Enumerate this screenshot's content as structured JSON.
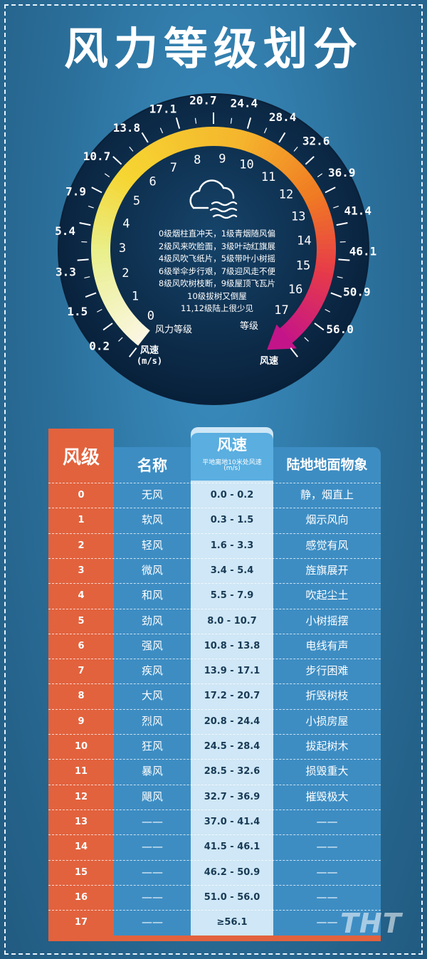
{
  "title": "风力等级划分",
  "gauge": {
    "outer_speeds": [
      "0.2",
      "1.5",
      "3.3",
      "5.4",
      "7.9",
      "10.7",
      "13.8",
      "17.1",
      "20.7",
      "24.4",
      "28.4",
      "32.6",
      "36.9",
      "41.4",
      "46.1",
      "50.9",
      "56.0"
    ],
    "inner_levels": [
      "0",
      "1",
      "2",
      "3",
      "4",
      "5",
      "6",
      "7",
      "8",
      "9",
      "10",
      "11",
      "12",
      "13",
      "14",
      "15",
      "16",
      "17"
    ],
    "label_level_left": "风力等级",
    "label_speed_left": "风速",
    "label_unit_left": "(m/s)",
    "label_level_right": "等级",
    "label_speed_right": "风速",
    "descriptions": [
      "0级烟柱直冲天，1级青烟随风偏",
      "2级风来吹脸面，3级叶动红旗展",
      "4级风吹飞纸片，5级带叶小树摇",
      "6级举伞步行艰，7级迎风走不便",
      "8级风吹树枝断，9级屋顶飞瓦片",
      "10级拔树又倒屋",
      "11,12级陆上很少见"
    ],
    "colors": {
      "dark": "#0d2a45",
      "yellow": "#f6d632",
      "orange": "#f07a23",
      "magenta": "#c4148a"
    }
  },
  "table": {
    "headers": {
      "level": "风级",
      "name": "名称",
      "speed": "风速",
      "speed_sub": "平地离地10米处风速",
      "speed_unit": "(m/s)",
      "phenomena": "陆地地面物象"
    },
    "rows": [
      {
        "level": "0",
        "name": "无风",
        "speed": "0.0 - 0.2",
        "phenomena": "静，烟直上"
      },
      {
        "level": "1",
        "name": "软风",
        "speed": "0.3 - 1.5",
        "phenomena": "烟示风向"
      },
      {
        "level": "2",
        "name": "轻风",
        "speed": "1.6 - 3.3",
        "phenomena": "感觉有风"
      },
      {
        "level": "3",
        "name": "微风",
        "speed": "3.4 - 5.4",
        "phenomena": "旌旗展开"
      },
      {
        "level": "4",
        "name": "和风",
        "speed": "5.5 - 7.9",
        "phenomena": "吹起尘土"
      },
      {
        "level": "5",
        "name": "劲风",
        "speed": "8.0 - 10.7",
        "phenomena": "小树摇摆"
      },
      {
        "level": "6",
        "name": "强风",
        "speed": "10.8 - 13.8",
        "phenomena": "电线有声"
      },
      {
        "level": "7",
        "name": "疾风",
        "speed": "13.9 - 17.1",
        "phenomena": "步行困难"
      },
      {
        "level": "8",
        "name": "大风",
        "speed": "17.2 - 20.7",
        "phenomena": "折毁树枝"
      },
      {
        "level": "9",
        "name": "烈风",
        "speed": "20.8 - 24.4",
        "phenomena": "小损房屋"
      },
      {
        "level": "10",
        "name": "狂风",
        "speed": "24.5 - 28.4",
        "phenomena": "拔起树木"
      },
      {
        "level": "11",
        "name": "暴风",
        "speed": "28.5 - 32.6",
        "phenomena": "损毁重大"
      },
      {
        "level": "12",
        "name": "飓风",
        "speed": "32.7 - 36.9",
        "phenomena": "摧毁极大"
      },
      {
        "level": "13",
        "name": "——",
        "speed": "37.0 - 41.4",
        "phenomena": "——"
      },
      {
        "level": "14",
        "name": "——",
        "speed": "41.5 - 46.1",
        "phenomena": "——"
      },
      {
        "level": "15",
        "name": "——",
        "speed": "46.2 - 50.9",
        "phenomena": "——"
      },
      {
        "level": "16",
        "name": "——",
        "speed": "51.0 - 56.0",
        "phenomena": "——"
      },
      {
        "level": "17",
        "name": "——",
        "speed": "≥56.1",
        "phenomena": "——"
      }
    ],
    "colors": {
      "level_column": "#e2623d",
      "body": "#3d8dc3",
      "speed_column": "#cfe7f6"
    }
  },
  "watermark": "THT"
}
